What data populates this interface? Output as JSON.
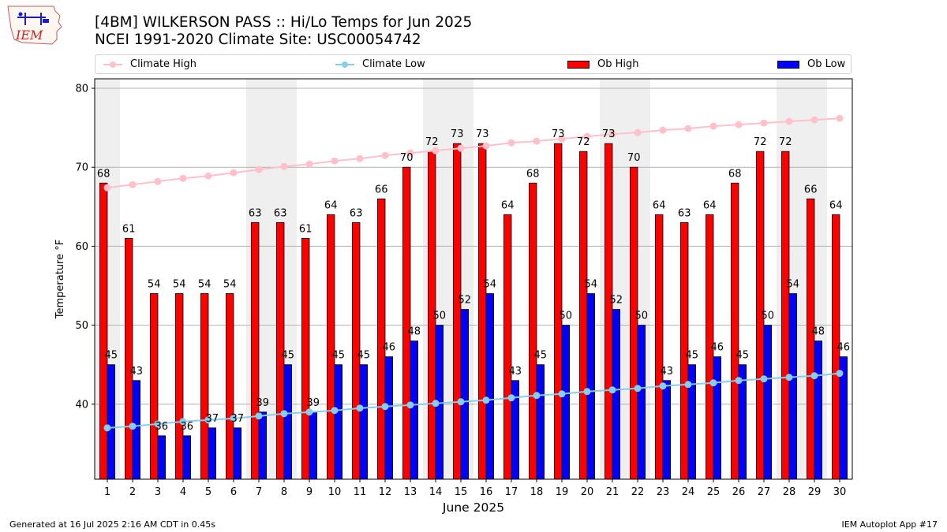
{
  "header": {
    "title": "[4BM] WILKERSON PASS :: Hi/Lo Temps for Jun 2025",
    "subtitle": "NCEI 1991-2020 Climate Site: USC00054742",
    "logo_text": "IEM",
    "logo_icon": "iowa-weather-station-logo"
  },
  "legend": {
    "items": [
      {
        "label": "Climate High",
        "color": "#ffc0cb",
        "kind": "line"
      },
      {
        "label": "Climate Low",
        "color": "#87ceeb",
        "kind": "line"
      },
      {
        "label": "Ob High",
        "color": "#ff0000",
        "kind": "bar"
      },
      {
        "label": "Ob Low",
        "color": "#0000ff",
        "kind": "bar"
      }
    ]
  },
  "footer": {
    "left": "Generated at 16 Jul 2025 2:16 AM CDT in 0.45s",
    "right": "IEM Autoplot App #17"
  },
  "chart_data": {
    "type": "bar",
    "title": "[4BM] WILKERSON PASS :: Hi/Lo Temps for Jun 2025",
    "xlabel": "June 2025",
    "ylabel": "Temperature °F",
    "ylim": [
      30.5,
      81.2
    ],
    "yticks": [
      40,
      50,
      60,
      70,
      80
    ],
    "grid": true,
    "legend_position": "top",
    "weekend_shading": true,
    "shaded_days": [
      1,
      7,
      8,
      14,
      15,
      21,
      22,
      28,
      29
    ],
    "categories": [
      "1",
      "2",
      "3",
      "4",
      "5",
      "6",
      "7",
      "8",
      "9",
      "10",
      "11",
      "12",
      "13",
      "14",
      "15",
      "16",
      "17",
      "18",
      "19",
      "20",
      "21",
      "22",
      "23",
      "24",
      "25",
      "26",
      "27",
      "28",
      "29",
      "30"
    ],
    "series": [
      {
        "name": "Ob High",
        "type": "bar",
        "color": "#ff0000",
        "values": [
          68,
          61,
          54,
          54,
          54,
          54,
          63,
          63,
          61,
          64,
          63,
          66,
          70,
          72,
          73,
          73,
          64,
          68,
          73,
          72,
          73,
          70,
          64,
          63,
          64,
          68,
          72,
          72,
          66,
          64
        ]
      },
      {
        "name": "Ob Low",
        "type": "bar",
        "color": "#0000ff",
        "values": [
          45,
          43,
          36,
          36,
          37,
          37,
          39,
          45,
          39,
          45,
          45,
          46,
          48,
          50,
          52,
          54,
          43,
          45,
          50,
          54,
          52,
          50,
          43,
          45,
          46,
          45,
          50,
          54,
          48,
          46
        ]
      },
      {
        "name": "Climate High",
        "type": "line",
        "color": "#ffc0cb",
        "values": [
          67.4,
          67.8,
          68.2,
          68.6,
          68.9,
          69.3,
          69.7,
          70.1,
          70.4,
          70.8,
          71.1,
          71.5,
          71.8,
          72.1,
          72.4,
          72.7,
          73.1,
          73.3,
          73.6,
          73.9,
          74.2,
          74.4,
          74.7,
          74.9,
          75.2,
          75.4,
          75.6,
          75.8,
          76.0,
          76.2
        ]
      },
      {
        "name": "Climate Low",
        "type": "line",
        "color": "#87ceeb",
        "values": [
          37.0,
          37.2,
          37.5,
          37.8,
          38.0,
          38.2,
          38.5,
          38.8,
          39.0,
          39.2,
          39.5,
          39.7,
          39.9,
          40.1,
          40.3,
          40.5,
          40.8,
          41.1,
          41.3,
          41.6,
          41.8,
          42.0,
          42.3,
          42.5,
          42.7,
          43.0,
          43.2,
          43.4,
          43.6,
          43.9
        ]
      }
    ]
  }
}
